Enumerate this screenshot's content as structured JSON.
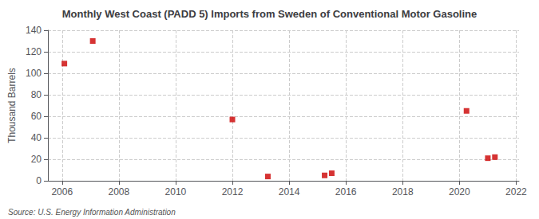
{
  "chart_data": {
    "type": "scatter",
    "title": "Monthly West Coast (PADD 5) Imports from Sweden of Conventional Motor Gasoline",
    "ylabel": "Thousand Barrels",
    "annotations": [
      "Source: U.S. Energy Information Administration"
    ],
    "x": [
      2006.08,
      2007.08,
      2012.0,
      2013.25,
      2015.25,
      2015.5,
      2020.25,
      2021.0,
      2021.25
    ],
    "values": [
      109,
      130,
      57,
      4,
      5,
      7,
      65,
      21,
      22
    ],
    "color": "#cc0000",
    "marker": "square",
    "xlim": [
      2005.5,
      2022.1
    ],
    "ylim": [
      0,
      140
    ],
    "xticks": [
      2006,
      2008,
      2010,
      2012,
      2014,
      2016,
      2018,
      2020,
      2022
    ],
    "yticks": [
      0,
      20,
      40,
      60,
      80,
      100,
      120,
      140
    ],
    "grid": true
  }
}
